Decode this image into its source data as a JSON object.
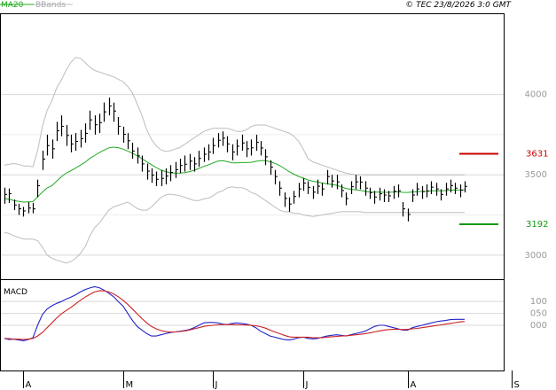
{
  "header": {
    "indicator_ma": "MA20",
    "indicator_bb": "BBands",
    "copyright": "© TEC 23/8/2026 3:0 GMT"
  },
  "colors": {
    "price": "#000000",
    "ma20": "#22aa22",
    "bbands": "#bdbdbd",
    "grid": "#d8d8d8",
    "resistance": "#cc0000",
    "support": "#119911",
    "macd": "#2222cc",
    "signal": "#cc2222"
  },
  "chart_data": [
    {
      "type": "ohlc",
      "title": "",
      "ylim": [
        2850,
        4500
      ],
      "y_ticks": [
        3000,
        3500,
        4000
      ],
      "y_tick_labels": [
        "3000",
        "3500",
        "4000"
      ],
      "x_tick_labels": [
        "A",
        "M",
        "J",
        "J",
        "A",
        "S"
      ],
      "x_tick_index": [
        4,
        25,
        44,
        63,
        85,
        107
      ],
      "grid": true,
      "levels": [
        {
          "name": "resistance",
          "value": 3631,
          "label": "3631"
        },
        {
          "name": "support",
          "value": 3192,
          "label": "3192"
        }
      ],
      "close": [
        3378,
        3383,
        3312,
        3289,
        3275,
        3293,
        3288,
        3432,
        3598,
        3682,
        3662,
        3774,
        3802,
        3745,
        3692,
        3708,
        3725,
        3758,
        3842,
        3812,
        3825,
        3892,
        3928,
        3897,
        3802,
        3752,
        3712,
        3648,
        3618,
        3568,
        3523,
        3498,
        3472,
        3478,
        3492,
        3515,
        3532,
        3558,
        3566,
        3585,
        3568,
        3602,
        3628,
        3642,
        3682,
        3715,
        3728,
        3692,
        3642,
        3678,
        3698,
        3662,
        3668,
        3702,
        3667,
        3612,
        3548,
        3489,
        3417,
        3353,
        3318,
        3365,
        3412,
        3448,
        3422,
        3392,
        3429,
        3412,
        3489,
        3462,
        3456,
        3402,
        3352,
        3426,
        3456,
        3454,
        3417,
        3389,
        3362,
        3382,
        3374,
        3369,
        3397,
        3401,
        3288,
        3253,
        3374,
        3412,
        3395,
        3399,
        3423,
        3412,
        3378,
        3412,
        3433,
        3417,
        3404,
        3428
      ],
      "high": [
        3420,
        3415,
        3345,
        3320,
        3300,
        3330,
        3325,
        3470,
        3650,
        3750,
        3720,
        3830,
        3870,
        3810,
        3750,
        3760,
        3780,
        3820,
        3900,
        3870,
        3880,
        3950,
        3980,
        3950,
        3860,
        3800,
        3760,
        3700,
        3670,
        3620,
        3570,
        3540,
        3520,
        3530,
        3540,
        3560,
        3580,
        3600,
        3620,
        3630,
        3610,
        3650,
        3670,
        3690,
        3730,
        3760,
        3770,
        3740,
        3690,
        3720,
        3750,
        3710,
        3720,
        3750,
        3710,
        3660,
        3590,
        3530,
        3460,
        3390,
        3360,
        3400,
        3450,
        3480,
        3460,
        3430,
        3470,
        3450,
        3530,
        3500,
        3500,
        3440,
        3390,
        3460,
        3500,
        3490,
        3460,
        3420,
        3400,
        3420,
        3410,
        3400,
        3430,
        3440,
        3330,
        3290,
        3410,
        3450,
        3430,
        3440,
        3460,
        3450,
        3410,
        3450,
        3470,
        3450,
        3440,
        3460
      ],
      "low": [
        3320,
        3325,
        3280,
        3250,
        3240,
        3260,
        3260,
        3360,
        3530,
        3620,
        3600,
        3710,
        3740,
        3680,
        3640,
        3650,
        3670,
        3700,
        3780,
        3750,
        3760,
        3830,
        3870,
        3830,
        3750,
        3700,
        3660,
        3600,
        3570,
        3520,
        3470,
        3450,
        3430,
        3430,
        3440,
        3460,
        3480,
        3510,
        3520,
        3530,
        3520,
        3550,
        3580,
        3590,
        3630,
        3670,
        3680,
        3640,
        3590,
        3620,
        3650,
        3610,
        3620,
        3650,
        3620,
        3560,
        3500,
        3440,
        3370,
        3300,
        3270,
        3320,
        3360,
        3400,
        3380,
        3350,
        3380,
        3370,
        3440,
        3420,
        3410,
        3360,
        3310,
        3380,
        3410,
        3410,
        3370,
        3350,
        3320,
        3340,
        3330,
        3330,
        3350,
        3360,
        3240,
        3210,
        3330,
        3370,
        3350,
        3360,
        3380,
        3370,
        3340,
        3370,
        3390,
        3380,
        3360,
        3390
      ],
      "ma20": [
        3352,
        3348,
        3340,
        3335,
        3330,
        3332,
        3333,
        3362,
        3392,
        3418,
        3433,
        3460,
        3488,
        3510,
        3525,
        3542,
        3560,
        3578,
        3602,
        3620,
        3638,
        3654,
        3668,
        3672,
        3669,
        3660,
        3648,
        3634,
        3618,
        3600,
        3582,
        3563,
        3545,
        3530,
        3520,
        3512,
        3510,
        3511,
        3514,
        3520,
        3528,
        3540,
        3552,
        3562,
        3574,
        3585,
        3588,
        3582,
        3574,
        3574,
        3576,
        3576,
        3578,
        3584,
        3588,
        3588,
        3582,
        3572,
        3558,
        3540,
        3520,
        3504,
        3490,
        3479,
        3468,
        3460,
        3455,
        3449,
        3444,
        3440,
        3435,
        3425,
        3415,
        3410,
        3407,
        3403,
        3398,
        3392,
        3392,
        3392,
        3391,
        3391,
        3393,
        3394,
        3391,
        3390,
        3393,
        3395,
        3397,
        3398,
        3400,
        3401,
        3400,
        3402,
        3404,
        3405,
        3405,
        3406
      ],
      "bb_upper": [
        3560,
        3565,
        3570,
        3565,
        3555,
        3555,
        3550,
        3650,
        3800,
        3900,
        3960,
        4040,
        4090,
        4150,
        4200,
        4230,
        4225,
        4200,
        4170,
        4150,
        4140,
        4130,
        4120,
        4110,
        4095,
        4080,
        4050,
        4010,
        3940,
        3870,
        3780,
        3720,
        3680,
        3655,
        3645,
        3650,
        3660,
        3670,
        3690,
        3710,
        3730,
        3750,
        3770,
        3780,
        3790,
        3790,
        3790,
        3790,
        3780,
        3770,
        3770,
        3780,
        3800,
        3810,
        3810,
        3810,
        3800,
        3790,
        3780,
        3770,
        3760,
        3740,
        3710,
        3660,
        3600,
        3580,
        3570,
        3560,
        3550,
        3540,
        3530,
        3520,
        3510,
        3505,
        3500,
        3500,
        3500,
        3500,
        3500,
        3500,
        3500,
        3500,
        3500,
        3500,
        3500,
        3500,
        3500,
        3500,
        3500,
        3500,
        3500,
        3500,
        3500,
        3500,
        3500,
        3500,
        3500,
        3500
      ],
      "bb_lower": [
        3140,
        3135,
        3120,
        3110,
        3100,
        3100,
        3100,
        3090,
        3050,
        3000,
        2980,
        2970,
        2960,
        2950,
        2960,
        2980,
        3010,
        3050,
        3120,
        3170,
        3200,
        3240,
        3280,
        3300,
        3310,
        3320,
        3330,
        3310,
        3290,
        3280,
        3280,
        3300,
        3330,
        3360,
        3375,
        3380,
        3375,
        3370,
        3360,
        3350,
        3340,
        3340,
        3350,
        3355,
        3370,
        3390,
        3400,
        3420,
        3425,
        3420,
        3420,
        3410,
        3390,
        3380,
        3360,
        3340,
        3320,
        3300,
        3280,
        3270,
        3270,
        3260,
        3260,
        3250,
        3245,
        3240,
        3245,
        3250,
        3255,
        3260,
        3265,
        3270,
        3270,
        3270,
        3270,
        3270,
        3265,
        3265,
        3265,
        3265,
        3265,
        3265,
        3265,
        3265,
        3265,
        3265,
        3265,
        3265,
        3265,
        3265,
        3265,
        3265,
        3265,
        3265,
        3265,
        3265,
        3265,
        3265
      ]
    },
    {
      "type": "line",
      "title": "MACD",
      "ylim": [
        -190,
        190
      ],
      "y_ticks": [
        100,
        50,
        0
      ],
      "y_tick_labels": [
        "100",
        "050",
        "000"
      ],
      "series": [
        {
          "name": "MACD",
          "values": [
            -55,
            -60,
            -58,
            -62,
            -65,
            -60,
            -52,
            0,
            45,
            68,
            82,
            92,
            100,
            110,
            118,
            128,
            140,
            150,
            157,
            162,
            158,
            148,
            135,
            120,
            100,
            80,
            50,
            20,
            -5,
            -20,
            -35,
            -45,
            -45,
            -40,
            -35,
            -30,
            -28,
            -25,
            -22,
            -18,
            -10,
            0,
            10,
            12,
            12,
            10,
            5,
            3,
            8,
            10,
            8,
            5,
            0,
            -10,
            -25,
            -35,
            -45,
            -50,
            -55,
            -60,
            -62,
            -58,
            -52,
            -50,
            -55,
            -57,
            -55,
            -50,
            -45,
            -42,
            -40,
            -42,
            -45,
            -40,
            -35,
            -30,
            -25,
            -15,
            -5,
            0,
            0,
            -5,
            -10,
            -15,
            -20,
            -20,
            -10,
            -5,
            0,
            5,
            10,
            15,
            18,
            20,
            24,
            25,
            25,
            25
          ]
        },
        {
          "name": "Signal",
          "values": [
            -55,
            -56,
            -58,
            -58,
            -60,
            -58,
            -55,
            -45,
            -30,
            -10,
            10,
            30,
            48,
            62,
            75,
            90,
            105,
            118,
            130,
            140,
            145,
            145,
            140,
            132,
            120,
            105,
            88,
            68,
            48,
            28,
            10,
            -5,
            -15,
            -22,
            -27,
            -28,
            -28,
            -26,
            -24,
            -20,
            -15,
            -10,
            -5,
            -2,
            0,
            2,
            3,
            3,
            3,
            2,
            2,
            1,
            0,
            -2,
            -6,
            -12,
            -20,
            -28,
            -35,
            -42,
            -48,
            -50,
            -50,
            -50,
            -50,
            -52,
            -52,
            -52,
            -50,
            -48,
            -47,
            -45,
            -44,
            -42,
            -40,
            -38,
            -35,
            -32,
            -28,
            -24,
            -20,
            -18,
            -17,
            -17,
            -18,
            -17,
            -15,
            -13,
            -10,
            -7,
            -4,
            -1,
            2,
            5,
            8,
            11,
            14,
            16
          ]
        }
      ]
    }
  ]
}
